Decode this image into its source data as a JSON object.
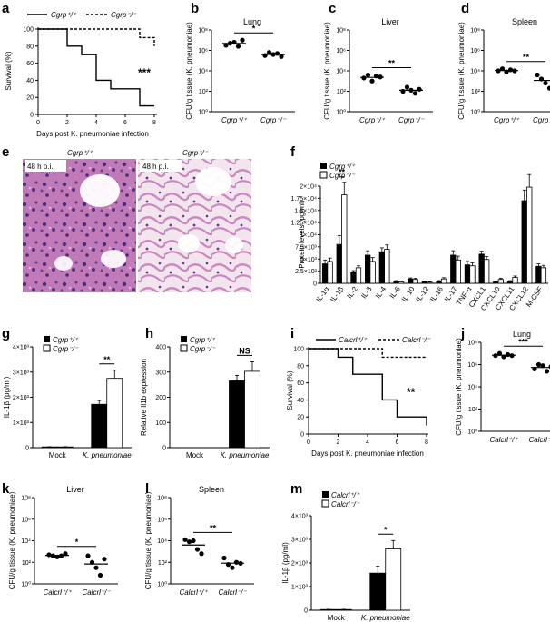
{
  "panels": {
    "a": {
      "label": "a",
      "legend": [
        "Cgrp⁺/⁺",
        "Cgrp⁻/⁻"
      ],
      "ylabel": "Survival (%)",
      "xlabel": "Days post K. pneumoniae infection",
      "sig": "***",
      "yticks": [
        "0",
        "20",
        "40",
        "60",
        "80",
        "100"
      ],
      "xticks": [
        "0",
        "2",
        "4",
        "6",
        "8"
      ]
    },
    "b": {
      "label": "b",
      "title": "Lung",
      "ylabel": "CFU/g tissue (K. pneumoniae)",
      "sig": "*",
      "groups": [
        "Cgrp⁺/⁺",
        "Cgrp⁻/⁻"
      ],
      "yticks": [
        "10⁰",
        "10²",
        "10⁴",
        "10⁶",
        "10⁸"
      ]
    },
    "c": {
      "label": "c",
      "title": "Liver",
      "ylabel": "CFU/g tissue (K. pneumoniae)",
      "sig": "**",
      "groups": [
        "Cgrp⁺/⁺",
        "Cgrp⁻/⁻"
      ],
      "yticks": [
        "10⁰",
        "10²",
        "10⁴",
        "10⁶",
        "10⁸"
      ]
    },
    "d": {
      "label": "d",
      "title": "Spleen",
      "ylabel": "CFU/g tissue (K. pneumoniae)",
      "sig": "**",
      "groups": [
        "Cgrp⁺/⁺",
        "Cgrp⁻/⁻"
      ],
      "yticks": [
        "10⁰",
        "10²",
        "10⁴",
        "10⁶",
        "10⁸"
      ]
    },
    "e": {
      "label": "e",
      "titles": [
        "Cgrp⁺/⁺",
        "Cgrp⁻/⁻"
      ],
      "tags": [
        "48 h p.i.",
        "48 h p.i."
      ]
    },
    "f": {
      "label": "f",
      "legend": [
        "Cgrp⁺/⁺",
        "Cgrp⁻/⁻"
      ],
      "ylabel": "Protein levels (pg/ml)",
      "sig": "**",
      "yticks": [
        "0",
        "2.5×10³",
        "5×10³",
        "7.5×10³",
        "1×10⁴",
        "1.25×10⁴",
        "1.5×10⁴",
        "1.75×10⁴",
        "2×10⁴"
      ],
      "categories": [
        "IL-1α",
        "IL-1β",
        "IL-2",
        "IL-3",
        "IL-4",
        "IL-6",
        "IL-10",
        "IL-12",
        "IL-16",
        "IL-17",
        "TNF-α",
        "CXCL1",
        "CXCL10",
        "CXCL11",
        "CXCL12",
        "M-CSF"
      ]
    },
    "g": {
      "label": "g",
      "legend": [
        "Cgrp⁺/⁺",
        "Cgrp⁻/⁻"
      ],
      "ylabel": "IL-1β (pg/ml)",
      "sig": "**",
      "xcats": [
        "Mock",
        "K. pneumoniae"
      ],
      "yticks": [
        "0",
        "1×10³",
        "2×10³",
        "3×10³",
        "4×10³"
      ]
    },
    "h": {
      "label": "h",
      "legend": [
        "Cgrp⁺/⁺",
        "Cgrp⁻/⁻"
      ],
      "ylabel": "Relative Il1b expression",
      "sig": "NS",
      "xcats": [
        "Mock",
        "K. pneumoniae"
      ],
      "yticks": [
        "0",
        "100",
        "200",
        "300",
        "400"
      ]
    },
    "i": {
      "label": "i",
      "legend": [
        "Calcrl⁺/⁺",
        "Calcrl⁻/⁻"
      ],
      "ylabel": "Survival (%)",
      "xlabel": "Days post K. pneumoniae infection",
      "sig": "**",
      "yticks": [
        "0",
        "20",
        "40",
        "60",
        "80",
        "100"
      ],
      "xticks": [
        "0",
        "2",
        "4",
        "6",
        "8"
      ]
    },
    "j": {
      "label": "j",
      "title": "Lung",
      "ylabel": "CFU/g tissue (K. pneumoniae)",
      "sig": "***",
      "groups": [
        "Calcrl⁺/⁺",
        "Calcrl⁻/⁻"
      ],
      "yticks": [
        "10⁰",
        "10²",
        "10⁴",
        "10⁶",
        "10⁸"
      ]
    },
    "k": {
      "label": "k",
      "title": "Liver",
      "ylabel": "CFU/g tissue (K. pneumoniae)",
      "sig": "*",
      "groups": [
        "Calcrl⁺/⁺",
        "Calcrl⁻/⁻"
      ],
      "yticks": [
        "10⁰",
        "10²",
        "10⁴",
        "10⁶",
        "10⁸"
      ]
    },
    "l": {
      "label": "l",
      "title": "Spleen",
      "ylabel": "CFU/g tissue (K. pneumoniae)",
      "sig": "**",
      "groups": [
        "Calcrl⁺/⁺",
        "Calcrl⁻/⁻"
      ],
      "yticks": [
        "10⁰",
        "10²",
        "10⁴",
        "10⁶",
        "10⁸"
      ]
    },
    "m": {
      "label": "m",
      "legend": [
        "Calcrl⁺/⁺",
        "Calcrl⁻/⁻"
      ],
      "ylabel": "IL-1β (pg/ml)",
      "sig": "*",
      "xcats": [
        "Mock",
        "K. pneumoniae"
      ],
      "yticks": [
        "0",
        "1×10³",
        "2×10³",
        "3×10³",
        "4×10³"
      ]
    }
  },
  "chart_data": [
    {
      "panel": "a",
      "type": "line",
      "x_steps": [
        0,
        2,
        3,
        4,
        5,
        7,
        8
      ],
      "series": [
        {
          "name": "Cgrp⁺/⁺",
          "values": [
            100,
            80,
            70,
            40,
            30,
            10,
            10
          ]
        },
        {
          "name": "Cgrp⁻/⁻",
          "x_steps": [
            0,
            5,
            7,
            8
          ],
          "values": [
            100,
            100,
            90,
            80
          ]
        }
      ],
      "xlim": [
        0,
        8
      ],
      "ylim": [
        0,
        100
      ]
    },
    {
      "panel": "b",
      "type": "scatter",
      "log_exponents": {
        "Cgrp⁺/⁺": [
          6.5,
          6.7,
          6.8,
          6.4,
          7.0
        ],
        "Cgrp⁻/⁻": [
          5.5,
          5.8,
          5.6,
          5.7,
          5.4
        ]
      },
      "ylim_exp": [
        0,
        8
      ]
    },
    {
      "panel": "c",
      "type": "scatter",
      "log_exponents": {
        "Cgrp⁺/⁺": [
          3.3,
          3.6,
          3.0,
          3.5,
          3.4
        ],
        "Cgrp⁻/⁻": [
          2.0,
          2.4,
          2.1,
          1.8,
          2.2
        ]
      },
      "ylim_exp": [
        0,
        8
      ]
    },
    {
      "panel": "d",
      "type": "scatter",
      "log_exponents": {
        "Cgrp⁺/⁺": [
          4.0,
          4.2,
          3.9,
          4.1,
          4.0
        ],
        "Cgrp⁻/⁻": [
          3.6,
          3.2,
          2.8,
          2.3,
          3.4
        ]
      },
      "ylim_exp": [
        0,
        8
      ]
    },
    {
      "panel": "f",
      "type": "bar",
      "ylim": [
        0,
        20000
      ],
      "categories": [
        "IL-1α",
        "IL-1β",
        "IL-2",
        "IL-3",
        "IL-4",
        "IL-6",
        "IL-10",
        "IL-12",
        "IL-16",
        "IL-17",
        "TNF-α",
        "CXCL1",
        "CXCL10",
        "CXCL11",
        "CXCL12",
        "M-CSF"
      ],
      "series": [
        {
          "name": "Cgrp⁺/⁺",
          "values": [
            4000,
            8000,
            2200,
            5800,
            6500,
            400,
            900,
            300,
            400,
            5800,
            3800,
            6000,
            300,
            400,
            17000,
            3500
          ],
          "errors": [
            800,
            1800,
            400,
            900,
            800,
            150,
            200,
            100,
            150,
            900,
            700,
            600,
            100,
            150,
            2200,
            500
          ]
        },
        {
          "name": "Cgrp⁻/⁻",
          "values": [
            4500,
            18200,
            3200,
            4500,
            7000,
            300,
            800,
            200,
            900,
            4800,
            3600,
            4900,
            800,
            1200,
            19800,
            3200
          ],
          "errors": [
            700,
            2600,
            400,
            800,
            900,
            100,
            200,
            100,
            250,
            800,
            600,
            600,
            250,
            300,
            2600,
            500
          ]
        }
      ]
    },
    {
      "panel": "g",
      "type": "bar",
      "categories": [
        "Mock",
        "K. pneumoniae"
      ],
      "ylim": [
        0,
        4000
      ],
      "series": [
        {
          "name": "Cgrp⁺/⁺",
          "values": [
            30,
            1720
          ],
          "errors": [
            10,
            150
          ]
        },
        {
          "name": "Cgrp⁻/⁻",
          "values": [
            30,
            2750
          ],
          "errors": [
            10,
            320
          ]
        }
      ]
    },
    {
      "panel": "h",
      "type": "bar",
      "categories": [
        "Mock",
        "K. pneumoniae"
      ],
      "ylim": [
        0,
        400
      ],
      "series": [
        {
          "name": "Cgrp⁺/⁺",
          "values": [
            0,
            265
          ],
          "errors": [
            0,
            22
          ]
        },
        {
          "name": "Cgrp⁻/⁻",
          "values": [
            0,
            303
          ],
          "errors": [
            0,
            38
          ]
        }
      ]
    },
    {
      "panel": "i",
      "type": "line",
      "series": [
        {
          "name": "Calcrl⁺/⁺",
          "x_steps": [
            0,
            2,
            3,
            5,
            6,
            7,
            8
          ],
          "values": [
            100,
            90,
            70,
            40,
            20,
            20,
            10
          ]
        },
        {
          "name": "Calcrl⁻/⁻",
          "x_steps": [
            0,
            5,
            8
          ],
          "values": [
            100,
            90,
            90
          ]
        }
      ],
      "xlim": [
        0,
        8
      ],
      "ylim": [
        0,
        100
      ]
    },
    {
      "panel": "j",
      "type": "scatter",
      "log_exponents": {
        "Calcrl⁺/⁺": [
          6.8,
          7.0,
          6.7,
          6.9,
          6.8
        ],
        "Calcrl⁻/⁻": [
          5.6,
          6.0,
          5.9,
          5.4,
          5.8
        ]
      },
      "ylim_exp": [
        0,
        8
      ]
    },
    {
      "panel": "k",
      "type": "scatter",
      "log_exponents": {
        "Calcrl⁺/⁺": [
          2.7,
          2.6,
          2.5,
          2.6,
          2.8
        ],
        "Calcrl⁻/⁻": [
          2.6,
          2.0,
          1.5,
          0.8,
          2.3
        ]
      },
      "ylim_exp": [
        0,
        8
      ]
    },
    {
      "panel": "l",
      "type": "scatter",
      "log_exponents": {
        "Calcrl⁺/⁺": [
          4.1,
          3.9,
          4.0,
          3.2,
          2.8
        ],
        "Calcrl⁻/⁻": [
          2.4,
          1.8,
          1.5,
          2.0,
          1.9
        ]
      },
      "ylim_exp": [
        0,
        8
      ]
    },
    {
      "panel": "m",
      "type": "bar",
      "categories": [
        "Mock",
        "K. pneumoniae"
      ],
      "ylim": [
        0,
        4000
      ],
      "series": [
        {
          "name": "Calcrl⁺/⁺",
          "values": [
            30,
            1570
          ],
          "errors": [
            10,
            300
          ]
        },
        {
          "name": "Calcrl⁻/⁻",
          "values": [
            30,
            2600
          ],
          "errors": [
            10,
            350
          ]
        }
      ]
    }
  ]
}
